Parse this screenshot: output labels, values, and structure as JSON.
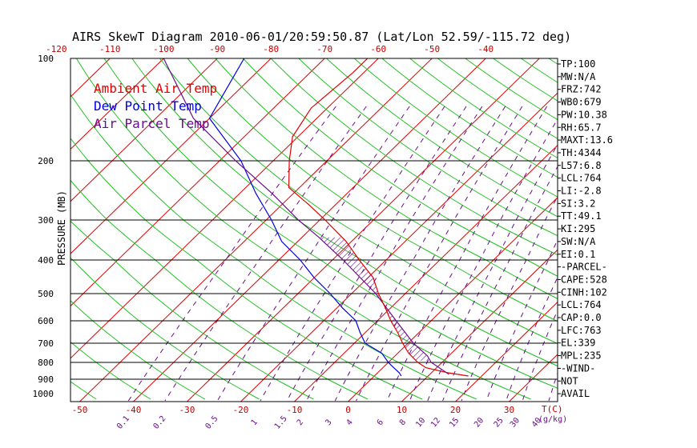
{
  "title": "AIRS SkewT Diagram 2010-06-01/20:59:50.87 (Lat/Lon 52.59/-115.72 deg)",
  "ylabel": "PRESSURE (MB)",
  "temp_unit_label": "T(C)",
  "mix_unit_label": "(g/kg)",
  "legend": [
    {
      "label": "Ambient Air Temp",
      "color": "#e00000"
    },
    {
      "label": "Dew Point Temp",
      "color": "#0000e0"
    },
    {
      "label": "Air Parcel Temp",
      "color": "#6a0d8c"
    }
  ],
  "stats": [
    "TP:100",
    "MW:N/A",
    "FRZ:742",
    "WB0:679",
    "PW:10.38",
    "RH:65.7",
    "MAXT:13.6",
    "TH:4344",
    "L57:6.8",
    "LCL:764",
    "LI:-2.8",
    "SI:3.2",
    "TT:49.1",
    "KI:295",
    "SW:N/A",
    "EI:0.1",
    "-PARCEL-",
    "CAPE:528",
    "CINH:102",
    "LCL:764",
    "CAP:0.0",
    "LFC:763",
    "EL:339",
    "MPL:235",
    "-WIND-",
    "NOT",
    "AVAIL"
  ],
  "chart_data": {
    "type": "skewt",
    "pressure_labels": [
      "100",
      "200",
      "300",
      "400",
      "500",
      "600",
      "700",
      "800",
      "900",
      "1000"
    ],
    "pressure_levels": [
      100,
      200,
      300,
      400,
      500,
      600,
      700,
      800,
      900,
      1000
    ],
    "top_temp_ticks": [
      "-120",
      "-110",
      "-100",
      "-90",
      "-80",
      "-70",
      "-60",
      "-50",
      "-40"
    ],
    "top_temp_values": [
      -120,
      -110,
      -100,
      -90,
      -80,
      -70,
      -60,
      -50,
      -40
    ],
    "bottom_temp_ticks": [
      "-50",
      "-40",
      "-30",
      "-20",
      "-10",
      "0",
      "10",
      "20",
      "30"
    ],
    "bottom_temp_values": [
      -50,
      -40,
      -30,
      -20,
      -10,
      0,
      10,
      20,
      30
    ],
    "mixing_ratio_ticks": [
      "0.1",
      "0.2",
      "0.5",
      "1",
      "1.5",
      "2",
      "3",
      "4",
      "6",
      "8",
      "10",
      "12",
      "15",
      "20",
      "25",
      "30",
      "40"
    ],
    "mixing_ratio_values": [
      0.1,
      0.2,
      0.5,
      1,
      1.5,
      2,
      3,
      4,
      6,
      8,
      10,
      12,
      15,
      20,
      25,
      30,
      40
    ],
    "ambient_temp": {
      "name": "Ambient Air Temp",
      "pressure": [
        880,
        860,
        830,
        800,
        750,
        700,
        650,
        600,
        550,
        500,
        450,
        400,
        350,
        300,
        270,
        240,
        200,
        170,
        140,
        110,
        100
      ],
      "temp": [
        17.5,
        13,
        8,
        5.5,
        2,
        -1,
        -4,
        -7.5,
        -11,
        -15,
        -19,
        -25,
        -31,
        -39,
        -45,
        -52,
        -57,
        -61,
        -63,
        -62,
        -62
      ]
    },
    "dewpoint": {
      "name": "Dew Point Temp",
      "pressure": [
        880,
        860,
        830,
        800,
        750,
        700,
        650,
        600,
        550,
        500,
        450,
        400,
        350,
        300,
        250,
        200,
        150,
        100
      ],
      "temp": [
        5,
        4,
        2,
        0,
        -3,
        -8,
        -11,
        -14,
        -19,
        -24,
        -30,
        -36,
        -43,
        -49,
        -57,
        -66,
        -80,
        -85
      ]
    },
    "parcel": {
      "name": "Air Parcel Temp",
      "pressure": [
        870,
        800,
        764,
        700,
        600,
        500,
        400,
        339,
        300,
        250,
        200,
        150,
        100
      ],
      "temp": [
        13.6,
        8,
        6,
        1,
        -6.5,
        -15.5,
        -28,
        -37,
        -44,
        -54,
        -67,
        -83,
        -100
      ]
    }
  }
}
